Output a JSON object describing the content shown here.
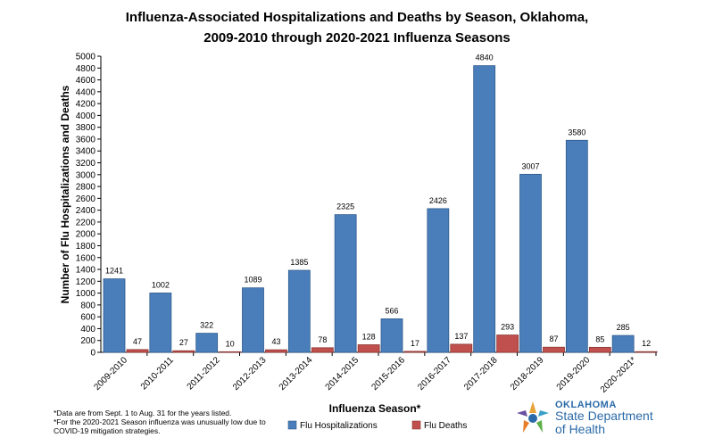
{
  "title_line1": "Influenza-Associated Hospitalizations and Deaths by Season, Oklahoma,",
  "title_line2": "2009-2010 through 2020-2021 Influenza Seasons",
  "footnotes": {
    "line1": "*Data are from Sept. 1 to Aug. 31 for the years listed.",
    "line2": "*For the 2020-2021 Season influenza was unusually low due to",
    "line3": "COVID-19 mitigation strategies."
  },
  "logo": {
    "line1": "OKLAHOMA",
    "line2": "State Department",
    "line3": "of Health"
  },
  "colors": {
    "hospitalizations": "#4a7ebb",
    "deaths": "#c0504d"
  },
  "chart_data": {
    "type": "bar",
    "xlabel": "Influenza Season*",
    "ylabel": "Number of Flu Hospitalizations and Deaths",
    "ylim": [
      0,
      5000
    ],
    "ytick_step": 200,
    "grid": false,
    "legend_position": "bottom",
    "categories": [
      "2009-2010",
      "2010-2011",
      "2011-2012",
      "2012-2013",
      "2013-2014",
      "2014-2015",
      "2015-2016",
      "2016-2017",
      "2017-2018",
      "2018-2019",
      "2019-2020",
      "2020-2021*"
    ],
    "series": [
      {
        "name": "Flu Hospitalizations",
        "values": [
          1241,
          1002,
          322,
          1089,
          1385,
          2325,
          566,
          2426,
          4840,
          3007,
          3580,
          285
        ]
      },
      {
        "name": "Flu Deaths",
        "values": [
          47,
          27,
          10,
          43,
          78,
          128,
          17,
          137,
          293,
          87,
          85,
          12
        ]
      }
    ]
  }
}
